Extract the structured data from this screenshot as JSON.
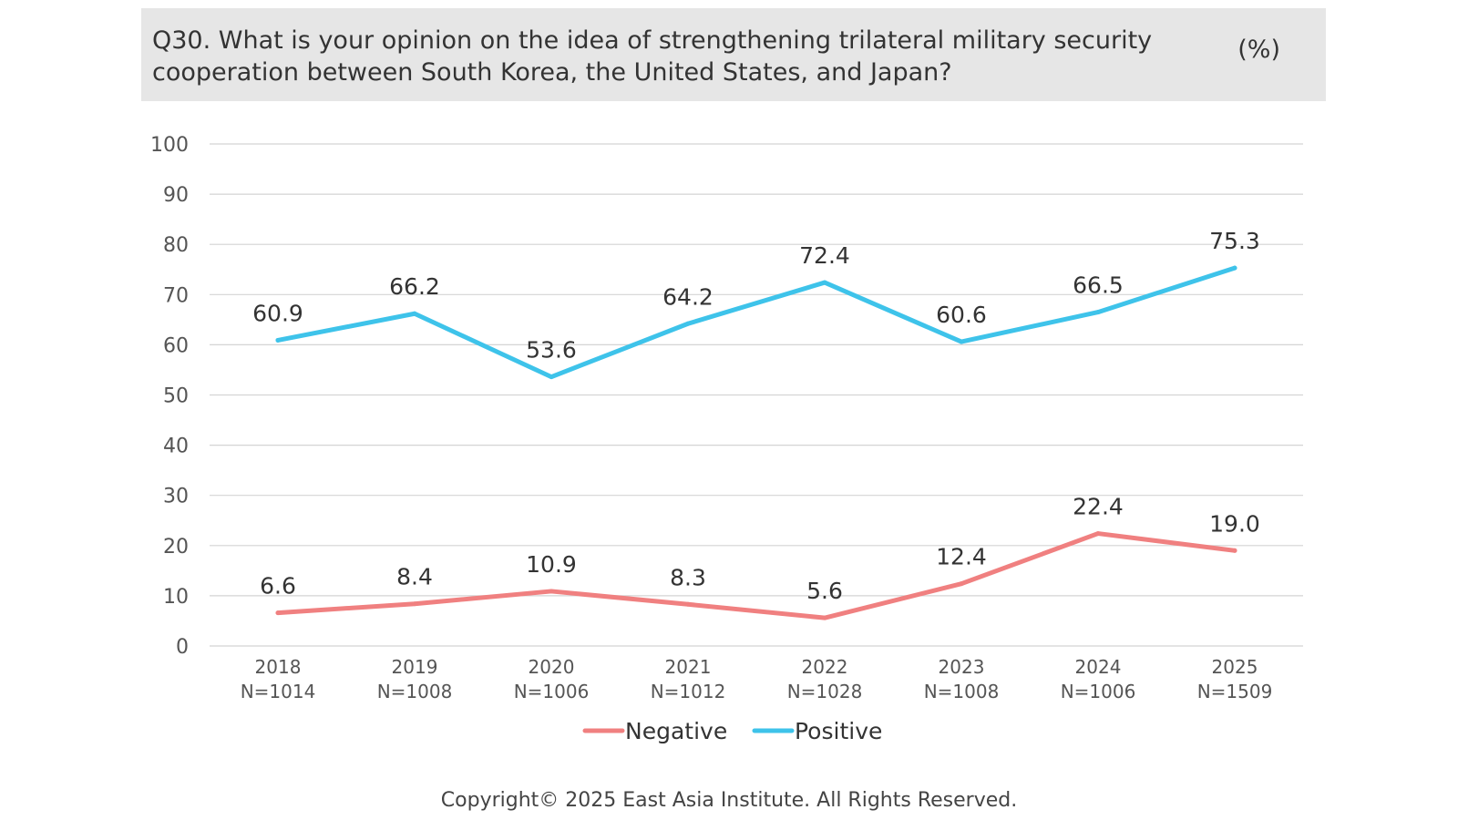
{
  "header": {
    "title": "Q30. What is your opinion on the idea of strengthening trilateral military security cooperation between South Korea, the United States, and Japan?",
    "unit": "(%)"
  },
  "footer": {
    "copyright": "Copyright© 2025 East Asia Institute. All Rights Reserved."
  },
  "chart_data": {
    "type": "line",
    "categories": [
      "2018",
      "2019",
      "2020",
      "2021",
      "2022",
      "2023",
      "2024",
      "2025"
    ],
    "category_sublabels": [
      "N=1014",
      "N=1008",
      "N=1006",
      "N=1012",
      "N=1028",
      "N=1008",
      "N=1006",
      "N=1509"
    ],
    "series": [
      {
        "name": "Negative",
        "color": "#f08080",
        "values": [
          6.6,
          8.4,
          10.9,
          8.3,
          5.6,
          12.4,
          22.4,
          19.0
        ],
        "labels": [
          "6.6",
          "8.4",
          "10.9",
          "8.3",
          "5.6",
          "12.4",
          "22.4",
          "19.0"
        ]
      },
      {
        "name": "Positive",
        "color": "#3ec3ea",
        "values": [
          60.9,
          66.2,
          53.6,
          64.2,
          72.4,
          60.6,
          66.5,
          75.3
        ],
        "labels": [
          "60.9",
          "66.2",
          "53.6",
          "64.2",
          "72.4",
          "60.6",
          "66.5",
          "75.3"
        ]
      }
    ],
    "ylim": [
      0,
      100
    ],
    "yticks": [
      0,
      10,
      20,
      30,
      40,
      50,
      60,
      70,
      80,
      90,
      100
    ],
    "grid": true,
    "legend_position": "bottom-center",
    "xlabel": "",
    "ylabel": ""
  }
}
